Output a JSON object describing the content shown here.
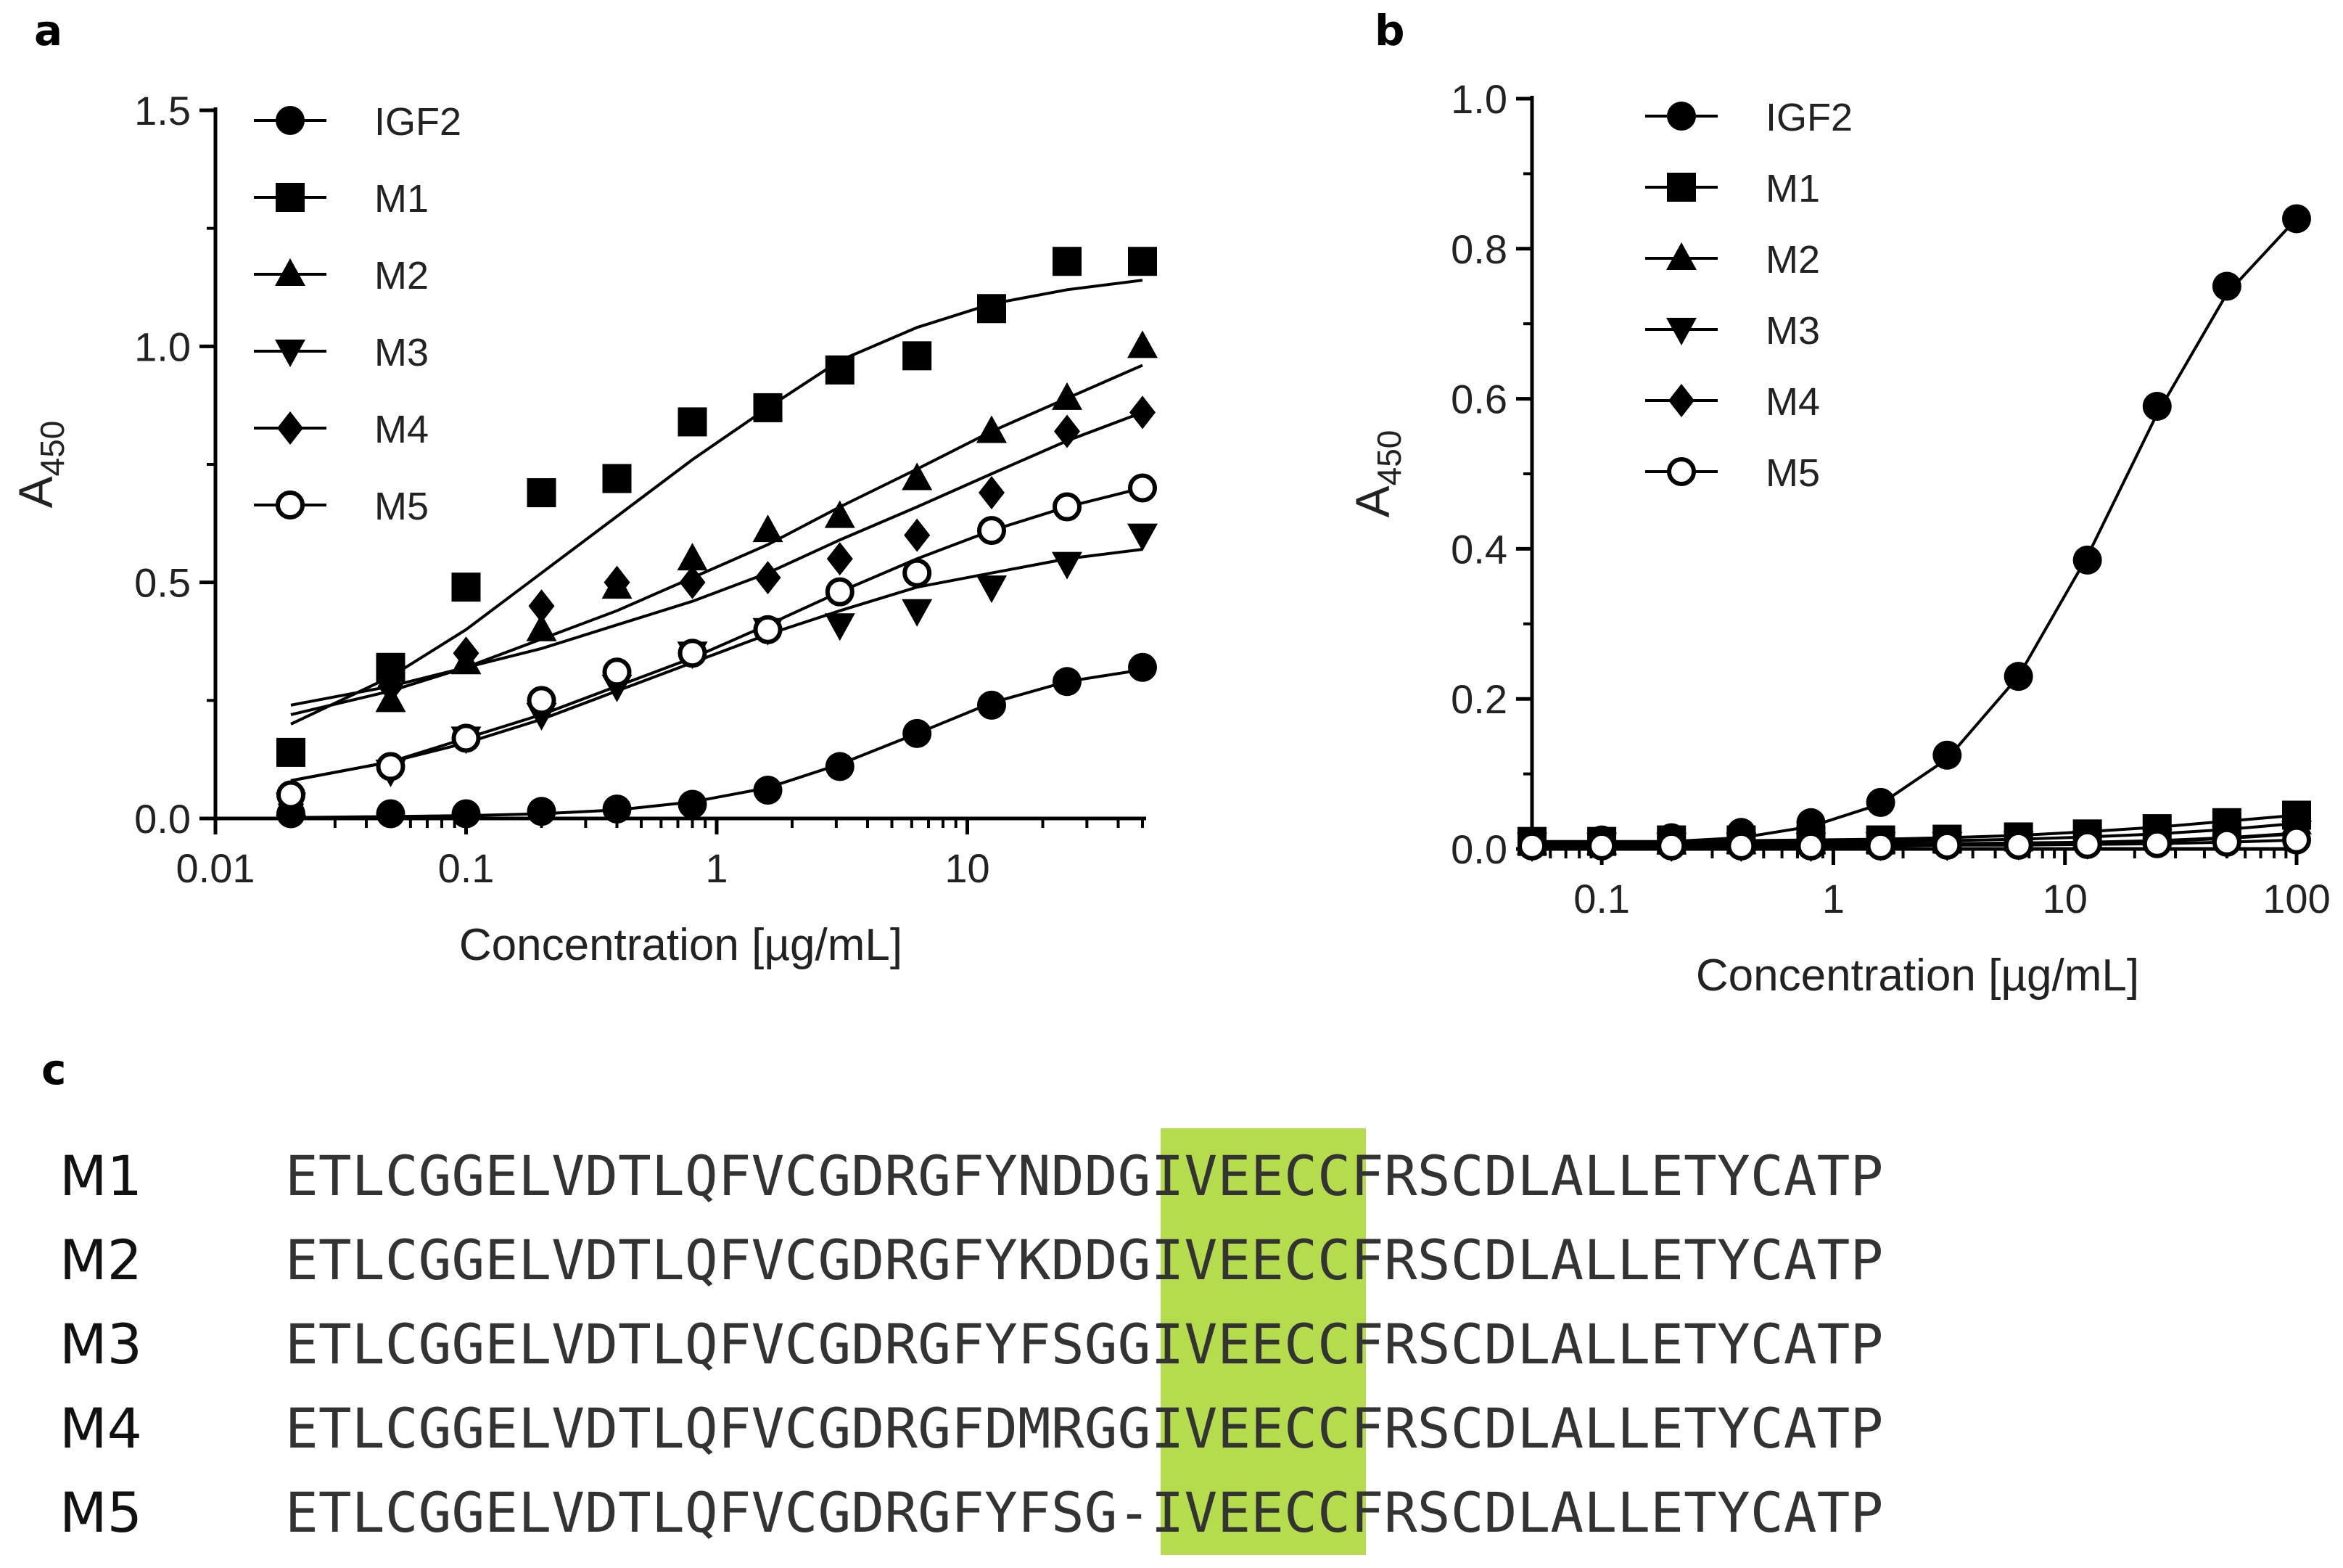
{
  "panels": {
    "a": "a",
    "b": "b",
    "c": "c"
  },
  "chart_data": [
    {
      "type": "scatter",
      "panel": "a",
      "xscale": "log",
      "xlabel": "Concentration [µg/mL]",
      "ylabel": "A450",
      "xlim": [
        0.01,
        50
      ],
      "ylim": [
        0,
        1.5
      ],
      "xticks": [
        0.01,
        0.1,
        1,
        10
      ],
      "xtick_labels": [
        "0.01",
        "0.1",
        "1",
        "10"
      ],
      "yticks": [
        0.0,
        0.5,
        1.0,
        1.5
      ],
      "ytick_labels": [
        "0.0",
        "0.5",
        "1.0",
        "1.5"
      ],
      "legend_position": "top-left",
      "x": [
        0.02,
        0.05,
        0.1,
        0.2,
        0.4,
        0.8,
        1.6,
        3.1,
        6.3,
        12.5,
        25,
        50
      ],
      "series": [
        {
          "name": "IGF2",
          "marker": "circle-filled",
          "values": [
            0.01,
            0.01,
            0.01,
            0.015,
            0.02,
            0.03,
            0.06,
            0.11,
            0.18,
            0.24,
            0.29,
            0.32
          ],
          "fit": [
            0.002,
            0.004,
            0.006,
            0.01,
            0.018,
            0.035,
            0.065,
            0.115,
            0.18,
            0.245,
            0.29,
            0.315
          ]
        },
        {
          "name": "M1",
          "marker": "square-filled",
          "values": [
            0.14,
            0.32,
            0.49,
            0.69,
            0.72,
            0.84,
            0.87,
            0.95,
            0.98,
            1.08,
            1.18,
            1.18
          ],
          "fit": [
            0.2,
            0.3,
            0.4,
            0.52,
            0.64,
            0.76,
            0.87,
            0.97,
            1.04,
            1.09,
            1.12,
            1.14
          ]
        },
        {
          "name": "M2",
          "marker": "triangle-up-filled",
          "values": [
            0.03,
            0.25,
            0.33,
            0.4,
            0.49,
            0.55,
            0.61,
            0.64,
            0.72,
            0.82,
            0.89,
            1.0
          ],
          "fit": [
            0.22,
            0.27,
            0.32,
            0.38,
            0.44,
            0.51,
            0.58,
            0.66,
            0.74,
            0.82,
            0.89,
            0.96
          ]
        },
        {
          "name": "M3",
          "marker": "triangle-down-filled",
          "values": [
            0.03,
            0.1,
            0.17,
            0.22,
            0.28,
            0.35,
            0.4,
            0.41,
            0.44,
            0.49,
            0.54,
            0.6
          ],
          "fit": [
            0.08,
            0.12,
            0.16,
            0.21,
            0.27,
            0.33,
            0.39,
            0.44,
            0.49,
            0.52,
            0.55,
            0.57
          ]
        },
        {
          "name": "M4",
          "marker": "diamond-filled",
          "values": [
            0.03,
            0.28,
            0.35,
            0.45,
            0.5,
            0.5,
            0.51,
            0.55,
            0.6,
            0.69,
            0.82,
            0.86
          ],
          "fit": [
            0.24,
            0.28,
            0.32,
            0.36,
            0.41,
            0.46,
            0.52,
            0.59,
            0.66,
            0.73,
            0.8,
            0.86
          ]
        },
        {
          "name": "M5",
          "marker": "circle-open",
          "values": [
            0.05,
            0.11,
            0.17,
            0.25,
            0.31,
            0.35,
            0.4,
            0.48,
            0.52,
            0.61,
            0.66,
            0.7
          ],
          "fit": [
            0.08,
            0.12,
            0.17,
            0.22,
            0.28,
            0.34,
            0.41,
            0.48,
            0.55,
            0.61,
            0.66,
            0.7
          ]
        }
      ]
    },
    {
      "type": "scatter",
      "panel": "b",
      "xscale": "log",
      "xlabel": "Concentration [µg/mL]",
      "ylabel": "A450",
      "xlim": [
        0.05,
        100
      ],
      "ylim": [
        0,
        1.0
      ],
      "xticks": [
        0.1,
        1,
        10,
        100
      ],
      "xtick_labels": [
        "0.1",
        "1",
        "10",
        "100"
      ],
      "yticks": [
        0.0,
        0.2,
        0.4,
        0.6,
        0.8,
        1.0
      ],
      "ytick_labels": [
        "0.0",
        "0.2",
        "0.4",
        "0.6",
        "0.8",
        "1.0"
      ],
      "legend_position": "top-left",
      "x": [
        0.05,
        0.1,
        0.2,
        0.4,
        0.8,
        1.6,
        3.1,
        6.3,
        12.5,
        25,
        50,
        100
      ],
      "series": [
        {
          "name": "IGF2",
          "marker": "circle-filled",
          "values": [
            0.01,
            0.012,
            0.015,
            0.022,
            0.035,
            0.062,
            0.125,
            0.23,
            0.385,
            0.59,
            0.75,
            0.84
          ],
          "fit": [
            0.005,
            0.007,
            0.01,
            0.015,
            0.03,
            0.06,
            0.12,
            0.23,
            0.39,
            0.58,
            0.74,
            0.84
          ]
        },
        {
          "name": "M1",
          "marker": "square-filled",
          "values": [
            0.01,
            0.01,
            0.012,
            0.012,
            0.012,
            0.012,
            0.013,
            0.016,
            0.02,
            0.027,
            0.035,
            0.045
          ],
          "fit": [
            0.01,
            0.01,
            0.01,
            0.011,
            0.012,
            0.013,
            0.015,
            0.018,
            0.023,
            0.029,
            0.037,
            0.045
          ]
        },
        {
          "name": "M2",
          "marker": "triangle-up-filled",
          "values": [
            0.008,
            0.008,
            0.008,
            0.009,
            0.009,
            0.01,
            0.011,
            0.013,
            0.016,
            0.02,
            0.026,
            0.035
          ],
          "fit": [
            0.008,
            0.008,
            0.008,
            0.009,
            0.009,
            0.01,
            0.011,
            0.013,
            0.016,
            0.02,
            0.026,
            0.034
          ]
        },
        {
          "name": "M3",
          "marker": "triangle-down-filled",
          "values": [
            0.006,
            0.006,
            0.006,
            0.006,
            0.006,
            0.007,
            0.007,
            0.008,
            0.009,
            0.011,
            0.015,
            0.022
          ],
          "fit": [
            0.006,
            0.006,
            0.006,
            0.006,
            0.006,
            0.007,
            0.007,
            0.008,
            0.009,
            0.011,
            0.015,
            0.021
          ]
        },
        {
          "name": "M4",
          "marker": "diamond-filled",
          "values": [
            0.005,
            0.005,
            0.005,
            0.005,
            0.005,
            0.006,
            0.006,
            0.007,
            0.008,
            0.01,
            0.014,
            0.02
          ],
          "fit": [
            0.005,
            0.005,
            0.005,
            0.005,
            0.005,
            0.006,
            0.006,
            0.007,
            0.008,
            0.01,
            0.014,
            0.02
          ]
        },
        {
          "name": "M5",
          "marker": "circle-open",
          "values": [
            0.004,
            0.004,
            0.004,
            0.004,
            0.004,
            0.004,
            0.005,
            0.005,
            0.006,
            0.007,
            0.009,
            0.012
          ],
          "fit": [
            0.004,
            0.004,
            0.004,
            0.004,
            0.004,
            0.004,
            0.005,
            0.005,
            0.006,
            0.007,
            0.009,
            0.012
          ]
        }
      ]
    }
  ],
  "sequences": {
    "highlight_color": "#b5dc4d",
    "rows": [
      {
        "name": "M1",
        "pre": "ETLCGGELVDTLQFVCGDRGF",
        "motif": "YNDDG",
        "post": "IVEECCFRSCDLALLETYCATP"
      },
      {
        "name": "M2",
        "pre": "ETLCGGELVDTLQFVCGDRGF",
        "motif": "YKDDG",
        "post": "IVEECCFRSCDLALLETYCATP"
      },
      {
        "name": "M3",
        "pre": "ETLCGGELVDTLQFVCGDRGF",
        "motif": "YFSGG",
        "post": "IVEECCFRSCDLALLETYCATP"
      },
      {
        "name": "M4",
        "pre": "ETLCGGELVDTLQFVCGDRGF",
        "motif": "DMRGG",
        "post": "IVEECCFRSCDLALLETYCATP"
      },
      {
        "name": "M5",
        "pre": "ETLCGGELVDTLQFVCGDRGF",
        "motif": "YFSG-",
        "post": "IVEECCFRSCDLALLETYCATP"
      }
    ]
  }
}
